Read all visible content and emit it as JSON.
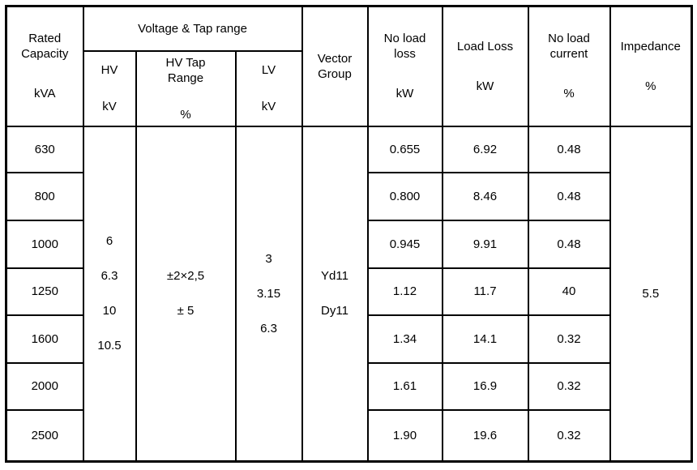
{
  "colors": {
    "background": "#ffffff",
    "border": "#000000",
    "text": "#000000"
  },
  "table": {
    "header": {
      "rated_capacity": {
        "label": "Rated\nCapacity",
        "unit": "kVA"
      },
      "voltage_tap_range": {
        "label": "Voltage & Tap range"
      },
      "hv": {
        "label": "HV",
        "unit": "kV"
      },
      "hv_tap_range": {
        "label": "HV Tap\nRange",
        "unit": "%"
      },
      "lv": {
        "label": "LV",
        "unit": "kV"
      },
      "vector_group": {
        "label": "Vector\nGroup"
      },
      "no_load_loss": {
        "label": "No load\nloss",
        "unit": "kW"
      },
      "load_loss": {
        "label": "Load Loss",
        "unit": "kW"
      },
      "no_load_current": {
        "label": "No load\ncurrent",
        "unit": "%"
      },
      "impedance": {
        "label": "Impedance",
        "unit": "%"
      }
    },
    "merged": {
      "hv_values": [
        "6",
        "6.3",
        "10",
        "10.5"
      ],
      "hv_tap_values": [
        "±2×2,5",
        "± 5"
      ],
      "lv_values": [
        "3",
        "3.15",
        "6.3"
      ],
      "vector_groups": [
        "Yd11",
        "Dy11"
      ],
      "impedance_value": "5.5"
    },
    "rows": [
      {
        "capacity": "630",
        "no_load_loss": "0.655",
        "load_loss": "6.92",
        "no_load_current": "0.48"
      },
      {
        "capacity": "800",
        "no_load_loss": "0.800",
        "load_loss": "8.46",
        "no_load_current": "0.48"
      },
      {
        "capacity": "1000",
        "no_load_loss": "0.945",
        "load_loss": "9.91",
        "no_load_current": "0.48"
      },
      {
        "capacity": "1250",
        "no_load_loss": "1.12",
        "load_loss": "11.7",
        "no_load_current": "40"
      },
      {
        "capacity": "1600",
        "no_load_loss": "1.34",
        "load_loss": "14.1",
        "no_load_current": "0.32"
      },
      {
        "capacity": "2000",
        "no_load_loss": "1.61",
        "load_loss": "16.9",
        "no_load_current": "0.32"
      },
      {
        "capacity": "2500",
        "no_load_loss": "1.90",
        "load_loss": "19.6",
        "no_load_current": "0.32"
      }
    ]
  }
}
